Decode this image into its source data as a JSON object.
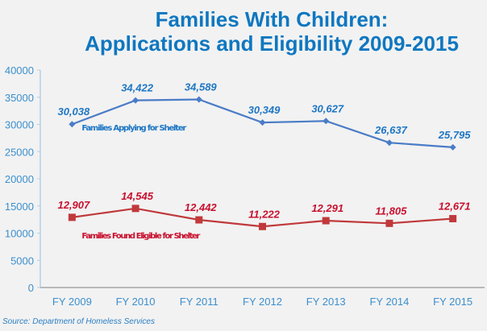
{
  "title_line1": "Families With Children:",
  "title_line2": "Applications and Eligibility 2009-2015",
  "source": "Source:  Department of Homeless Services",
  "colors": {
    "title": "#0f77c0",
    "applying": "#4a7cc7",
    "eligible": "#c0393b",
    "axis_text": "#3b8fcd",
    "applying_label": "#1f77c4",
    "eligible_label": "#c8102e"
  },
  "chart_data": {
    "type": "line",
    "title": "Families With Children: Applications and Eligibility 2009-2015",
    "xlabel": "",
    "ylabel": "",
    "categories": [
      "FY 2009",
      "FY 2010",
      "FY 2011",
      "FY 2012",
      "FY 2013",
      "FY 2014",
      "FY 2015"
    ],
    "ylim": [
      0,
      40000
    ],
    "yticks": [
      0,
      5000,
      10000,
      15000,
      20000,
      25000,
      30000,
      35000,
      40000
    ],
    "grid": false,
    "series": [
      {
        "name": "Families Applying for Shelter",
        "values": [
          30038,
          34422,
          34589,
          30349,
          30627,
          26637,
          25795
        ],
        "labels": [
          "30,038",
          "34,422",
          "34,589",
          "30,349",
          "30,627",
          "26,637",
          "25,795"
        ],
        "marker": "diamond"
      },
      {
        "name": "Families Found Eligible for Shelter",
        "values": [
          12907,
          14545,
          12442,
          11222,
          12291,
          11805,
          12671
        ],
        "labels": [
          "12,907",
          "14,545",
          "12,442",
          "11,222",
          "12,291",
          "11,805",
          "12,671"
        ],
        "marker": "square"
      }
    ],
    "legend": "inline-labels-below-first-point"
  }
}
